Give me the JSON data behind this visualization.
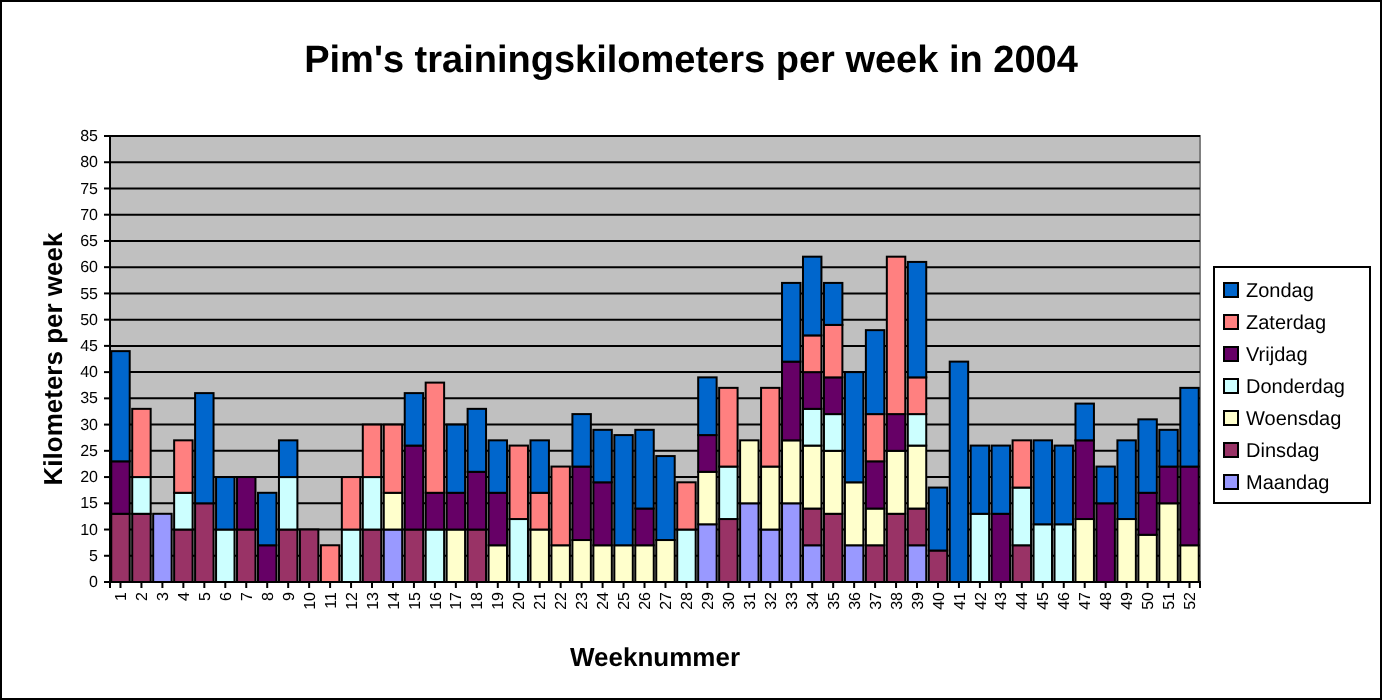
{
  "chart_data": {
    "type": "bar",
    "stacked": true,
    "title": "Pim's  trainingskilometers per week in 2004",
    "xlabel": "Weeknummer",
    "ylabel": "Kilometers per week",
    "categories": [
      "1",
      "2",
      "3",
      "4",
      "5",
      "6",
      "7",
      "8",
      "9",
      "10",
      "11",
      "12",
      "13",
      "14",
      "15",
      "16",
      "17",
      "18",
      "19",
      "20",
      "21",
      "22",
      "23",
      "24",
      "25",
      "26",
      "27",
      "28",
      "29",
      "30",
      "31",
      "32",
      "33",
      "34",
      "35",
      "36",
      "37",
      "38",
      "39",
      "40",
      "41",
      "42",
      "43",
      "44",
      "45",
      "46",
      "47",
      "48",
      "49",
      "50",
      "51",
      "52"
    ],
    "ylim": [
      0,
      85
    ],
    "yticks": [
      0,
      5,
      10,
      15,
      20,
      25,
      30,
      35,
      40,
      45,
      50,
      55,
      60,
      65,
      70,
      75,
      80,
      85
    ],
    "grid": "y",
    "legend": "right",
    "series": [
      {
        "name": "Maandag",
        "color": "#9999ff",
        "values": [
          null,
          null,
          13,
          null,
          null,
          null,
          null,
          null,
          null,
          null,
          null,
          null,
          null,
          10,
          null,
          null,
          null,
          null,
          null,
          null,
          null,
          null,
          null,
          null,
          null,
          null,
          null,
          null,
          11,
          null,
          15,
          10,
          15,
          7,
          null,
          7,
          null,
          null,
          7,
          null,
          null,
          null,
          null,
          null,
          null,
          null,
          null,
          null,
          null,
          null,
          null,
          null
        ]
      },
      {
        "name": "Dinsdag",
        "color": "#993366",
        "values": [
          13,
          13,
          null,
          10,
          15,
          null,
          10,
          null,
          10,
          10,
          null,
          null,
          10,
          null,
          10,
          null,
          null,
          10,
          null,
          null,
          null,
          null,
          null,
          null,
          null,
          null,
          null,
          null,
          null,
          12,
          null,
          null,
          null,
          7,
          13,
          null,
          7,
          13,
          7,
          6,
          null,
          null,
          null,
          7,
          null,
          null,
          null,
          null,
          null,
          null,
          null,
          null
        ]
      },
      {
        "name": "Woensdag",
        "color": "#ffffcc",
        "values": [
          null,
          null,
          null,
          null,
          null,
          null,
          null,
          null,
          null,
          null,
          null,
          null,
          null,
          7,
          null,
          null,
          10,
          null,
          7,
          null,
          10,
          7,
          8,
          7,
          7,
          7,
          8,
          null,
          10,
          null,
          12,
          12,
          12,
          12,
          12,
          12,
          7,
          12,
          12,
          null,
          null,
          null,
          null,
          null,
          null,
          null,
          12,
          null,
          12,
          9,
          15,
          7
        ]
      },
      {
        "name": "Donderdag",
        "color": "#ccffff",
        "values": [
          null,
          7,
          null,
          7,
          null,
          10,
          null,
          null,
          10,
          null,
          null,
          10,
          10,
          null,
          null,
          10,
          null,
          null,
          null,
          12,
          null,
          null,
          null,
          null,
          null,
          null,
          null,
          10,
          null,
          10,
          null,
          null,
          null,
          7,
          7,
          null,
          null,
          null,
          6,
          null,
          null,
          13,
          null,
          11,
          11,
          11,
          null,
          null,
          null,
          null,
          null,
          null
        ]
      },
      {
        "name": "Vrijdag",
        "color": "#660066",
        "values": [
          10,
          null,
          null,
          null,
          null,
          null,
          10,
          7,
          null,
          null,
          null,
          null,
          null,
          null,
          16,
          7,
          7,
          11,
          10,
          null,
          null,
          null,
          14,
          12,
          null,
          7,
          null,
          null,
          7,
          null,
          null,
          null,
          15,
          7,
          7,
          null,
          9,
          7,
          null,
          null,
          null,
          null,
          13,
          null,
          null,
          null,
          15,
          15,
          null,
          8,
          7,
          15
        ]
      },
      {
        "name": "Zaterdag",
        "color": "#ff8080",
        "values": [
          null,
          13,
          null,
          10,
          null,
          null,
          null,
          null,
          null,
          null,
          7,
          10,
          10,
          13,
          null,
          21,
          null,
          null,
          null,
          14,
          7,
          15,
          null,
          null,
          null,
          null,
          null,
          9,
          null,
          15,
          null,
          15,
          null,
          7,
          10,
          null,
          9,
          30,
          7,
          null,
          null,
          null,
          null,
          9,
          null,
          null,
          null,
          null,
          null,
          null,
          null,
          null
        ]
      },
      {
        "name": "Zondag",
        "color": "#0066cc",
        "values": [
          21,
          null,
          null,
          null,
          21,
          10,
          null,
          10,
          7,
          null,
          null,
          null,
          null,
          null,
          10,
          null,
          13,
          12,
          10,
          null,
          10,
          null,
          10,
          10,
          21,
          15,
          16,
          null,
          11,
          null,
          null,
          null,
          15,
          15,
          8,
          21,
          16,
          null,
          22,
          12,
          42,
          13,
          13,
          null,
          16,
          15,
          7,
          7,
          15,
          14,
          7,
          15
        ]
      }
    ]
  }
}
